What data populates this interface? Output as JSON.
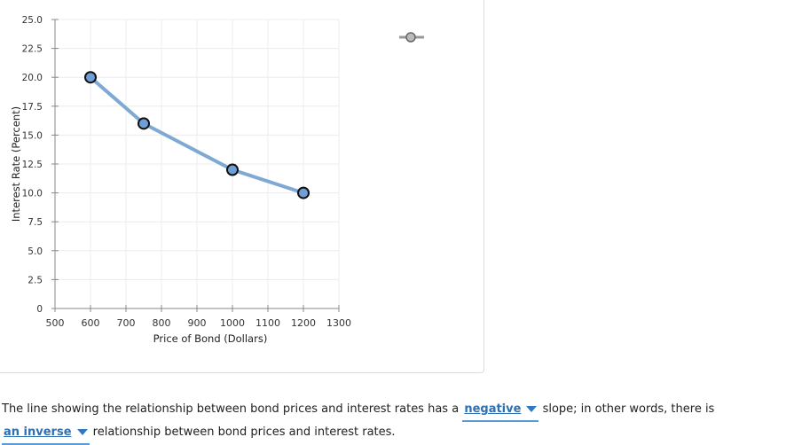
{
  "chart_data": {
    "type": "line",
    "xlabel": "Price of Bond (Dollars)",
    "ylabel": "Interest Rate (Percent)",
    "xlim": [
      500,
      1300
    ],
    "ylim": [
      0,
      25
    ],
    "x_ticks": [
      "500",
      "600",
      "700",
      "800",
      "900",
      "1000",
      "1100",
      "1200",
      "1300"
    ],
    "y_ticks": [
      "0",
      "2.5",
      "5.0",
      "7.5",
      "10.0",
      "12.5",
      "15.0",
      "17.5",
      "20.0",
      "22.5",
      "25.0"
    ],
    "series": [
      {
        "x": [
          600,
          750,
          1000,
          1200
        ],
        "y": [
          20,
          16,
          12,
          10
        ],
        "color": "#7fa8d4",
        "marker_fill": "#6f9fd8"
      }
    ],
    "grid": true
  },
  "toolbar": {
    "icon": "line-point-tool-icon"
  },
  "question": {
    "part1": "The line showing the relationship between bond prices and interest rates has a",
    "dropdown1": "negative",
    "part2": "slope; in other words, there is",
    "dropdown2": "an inverse",
    "part3": "relationship between bond prices and interest rates."
  }
}
